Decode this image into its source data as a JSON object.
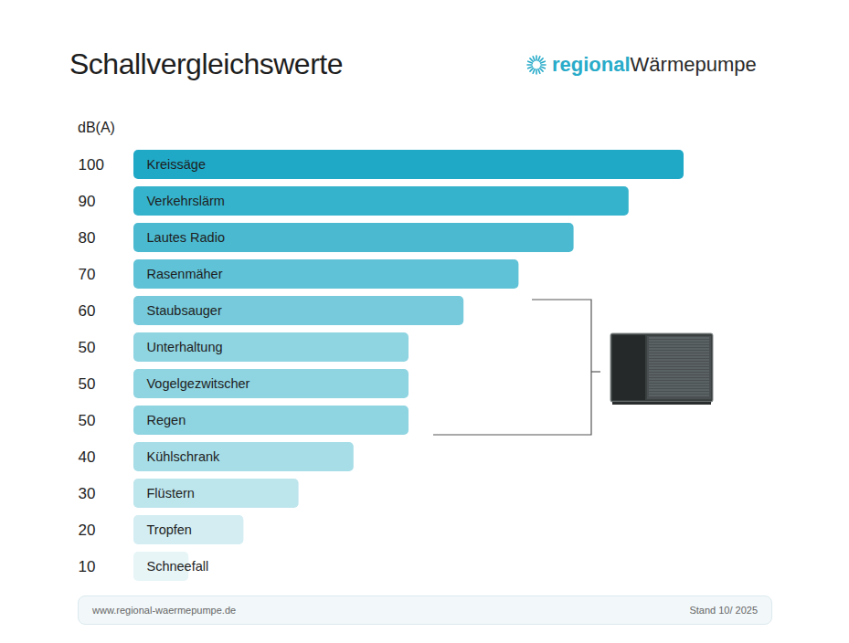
{
  "chart_data": {
    "type": "bar",
    "orientation": "horizontal",
    "title": "Schallvergleichswerte",
    "xlabel": "dB(A)",
    "categories": [
      "Kreissäge",
      "Verkehrslärm",
      "Lautes Radio",
      "Rasenmäher",
      "Staubsauger",
      "Unterhaltung",
      "Vogelgezwitscher",
      "Regen",
      "Kühlschrank",
      "Flüstern",
      "Tropfen",
      "Schneefall"
    ],
    "values": [
      100,
      90,
      80,
      70,
      60,
      50,
      50,
      50,
      40,
      30,
      20,
      10
    ],
    "colors": [
      "#20a9c7",
      "#36b3cc",
      "#4bbad1",
      "#60c2d6",
      "#76cadb",
      "#8fd4e1",
      "#8fd4e1",
      "#8fd4e1",
      "#a6dde7",
      "#bde5ec",
      "#d3edf2",
      "#e7f5f7"
    ],
    "xlim": [
      0,
      100
    ],
    "tick_labels": "y",
    "data_labels": true,
    "grid": false,
    "logo": {
      "prefix": "regional",
      "suffix": "Wärmepumpe"
    },
    "source": "www.regional-waermepumpe.de",
    "note": "Stand 10/ 2025"
  }
}
